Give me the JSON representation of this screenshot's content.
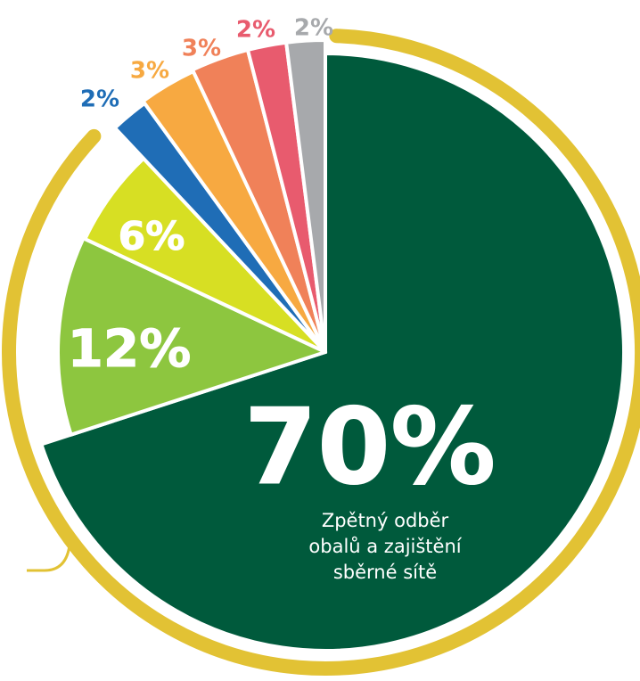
{
  "chart_data": {
    "type": "pie",
    "categories": [
      null,
      null,
      null,
      null,
      null,
      null,
      null,
      null
    ],
    "values": [
      70,
      12,
      6,
      2,
      3,
      3,
      2,
      2
    ],
    "value_labels": [
      "70%",
      "12%",
      "6%",
      "2%",
      "3%",
      "3%",
      "2%",
      "2%"
    ],
    "colors": [
      "#005a3c",
      "#8dc63f",
      "#d7df23",
      "#1f6db6",
      "#f7a941",
      "#f08159",
      "#e85b6e",
      "#a7a9ac"
    ],
    "annotation": [
      "Zpětný odběr",
      "obalů a zajištění",
      "sběrné sítě"
    ]
  }
}
